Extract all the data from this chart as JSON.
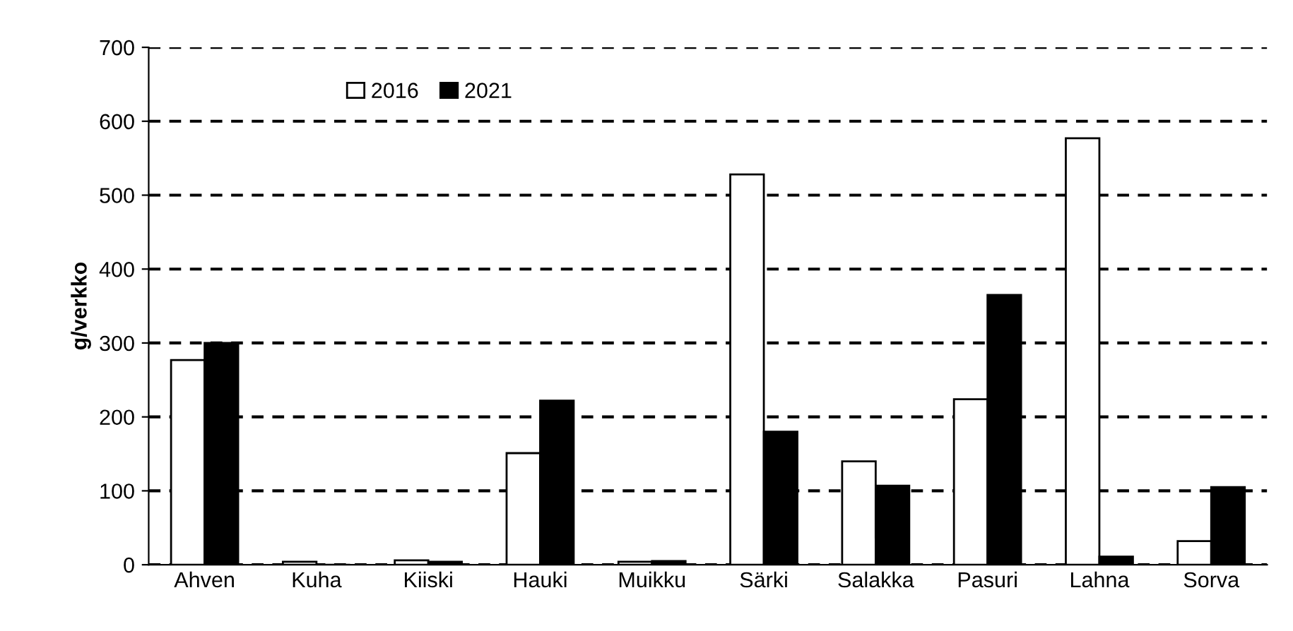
{
  "chart_data": {
    "type": "bar",
    "ylabel": "g/verkko",
    "categories": [
      "Ahven",
      "Kuha",
      "Kiiski",
      "Hauki",
      "Muikku",
      "Särki",
      "Salakka",
      "Pasuri",
      "Lahna",
      "Sorva"
    ],
    "series": [
      {
        "name": "2016",
        "color": "#ffffff",
        "values": [
          277,
          4,
          6,
          151,
          4,
          528,
          140,
          224,
          577,
          32
        ]
      },
      {
        "name": "2021",
        "color": "#000000",
        "values": [
          300,
          null,
          4,
          222,
          5,
          180,
          107,
          365,
          11,
          105
        ]
      }
    ],
    "ylim": [
      0,
      700
    ],
    "yticks": [
      0,
      100,
      200,
      300,
      400,
      500,
      600,
      700
    ],
    "grid": "y",
    "line_style": "dashed",
    "legend": "top left"
  }
}
